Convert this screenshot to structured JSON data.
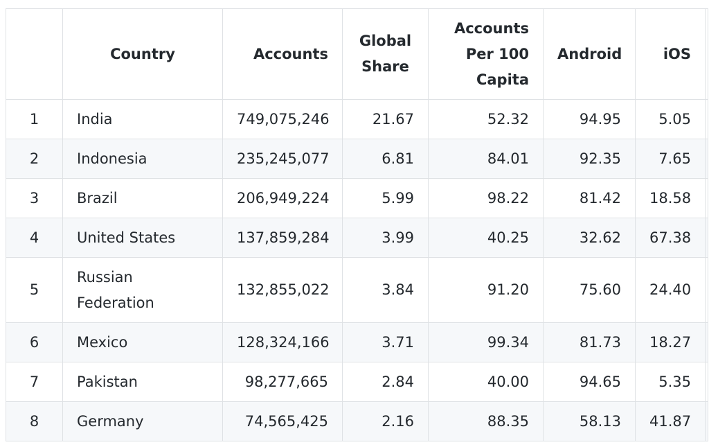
{
  "table": {
    "headers": [
      "",
      "Country",
      "Accounts",
      "Global Share",
      "Accounts Per 100 Capita",
      "Android",
      "iOS",
      ""
    ],
    "rows": [
      [
        "1",
        "India",
        "749,075,246",
        "21.67",
        "52.32",
        "94.95",
        "5.05"
      ],
      [
        "2",
        "Indonesia",
        "235,245,077",
        "6.81",
        "84.01",
        "92.35",
        "7.65"
      ],
      [
        "3",
        "Brazil",
        "206,949,224",
        "5.99",
        "98.22",
        "81.42",
        "18.58"
      ],
      [
        "4",
        "United States",
        "137,859,284",
        "3.99",
        "40.25",
        "32.62",
        "67.38"
      ],
      [
        "5",
        "Russian Federation",
        "132,855,022",
        "3.84",
        "91.20",
        "75.60",
        "24.40"
      ],
      [
        "6",
        "Mexico",
        "128,324,166",
        "3.71",
        "99.34",
        "81.73",
        "18.27"
      ],
      [
        "7",
        "Pakistan",
        "98,277,665",
        "2.84",
        "40.00",
        "94.65",
        "5.35"
      ],
      [
        "8",
        "Germany",
        "74,565,425",
        "2.16",
        "88.35",
        "58.13",
        "41.87"
      ]
    ]
  }
}
